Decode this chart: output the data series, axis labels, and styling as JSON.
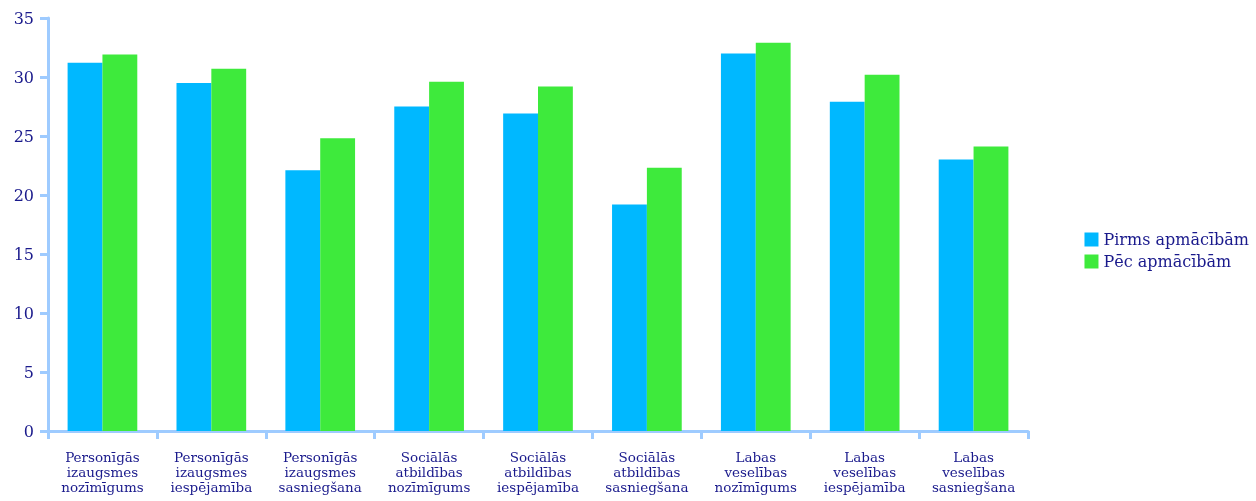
{
  "chart_data": {
    "type": "bar",
    "categories": [
      "Personīgās izaugsmes nozīmīgums",
      "Personīgās izaugsmes iespējamība",
      "Personīgās izaugsmes sasniegšana",
      "Sociālās atbildības nozīmīgums",
      "Sociālās atbildības iespējamība",
      "Sociālās atbildības sasniegšana",
      "Labas veselības nozīmīgums",
      "Labas veselības iespējamība",
      "Labas veselības sasniegšana"
    ],
    "series": [
      {
        "name": "Pirms apmācībām",
        "color": "#00b8ff",
        "values": [
          31.2,
          29.5,
          22.1,
          27.5,
          26.9,
          19.2,
          32.0,
          27.9,
          23.0
        ]
      },
      {
        "name": "Pēc apmācībām",
        "color": "#3eea3c",
        "values": [
          31.9,
          30.7,
          24.8,
          29.6,
          29.2,
          22.3,
          32.9,
          30.2,
          24.1
        ]
      }
    ],
    "ylim": [
      0,
      35
    ],
    "yticks": [
      0,
      5,
      10,
      15,
      20,
      25,
      30,
      35
    ],
    "grid": false,
    "legend": "right"
  }
}
